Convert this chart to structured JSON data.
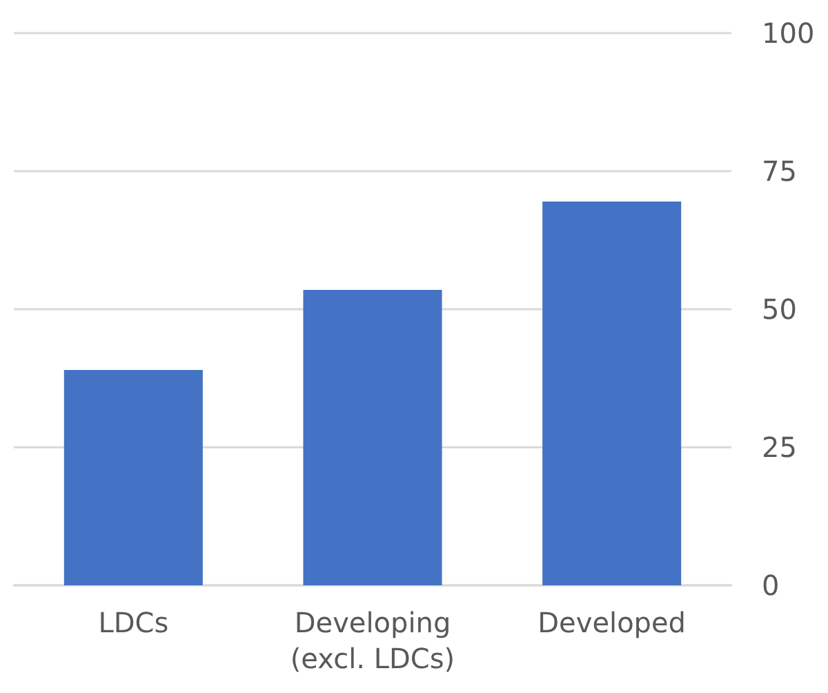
{
  "chart_data": {
    "type": "bar",
    "categories": [
      "LDCs",
      "Developing\n(excl. LDCs)",
      "Developed"
    ],
    "values": [
      39,
      53.5,
      69.5
    ],
    "color": "#4472c4",
    "ylim": [
      0,
      100
    ],
    "yticks": [
      0,
      25,
      50,
      75,
      100
    ],
    "grid": "y"
  }
}
